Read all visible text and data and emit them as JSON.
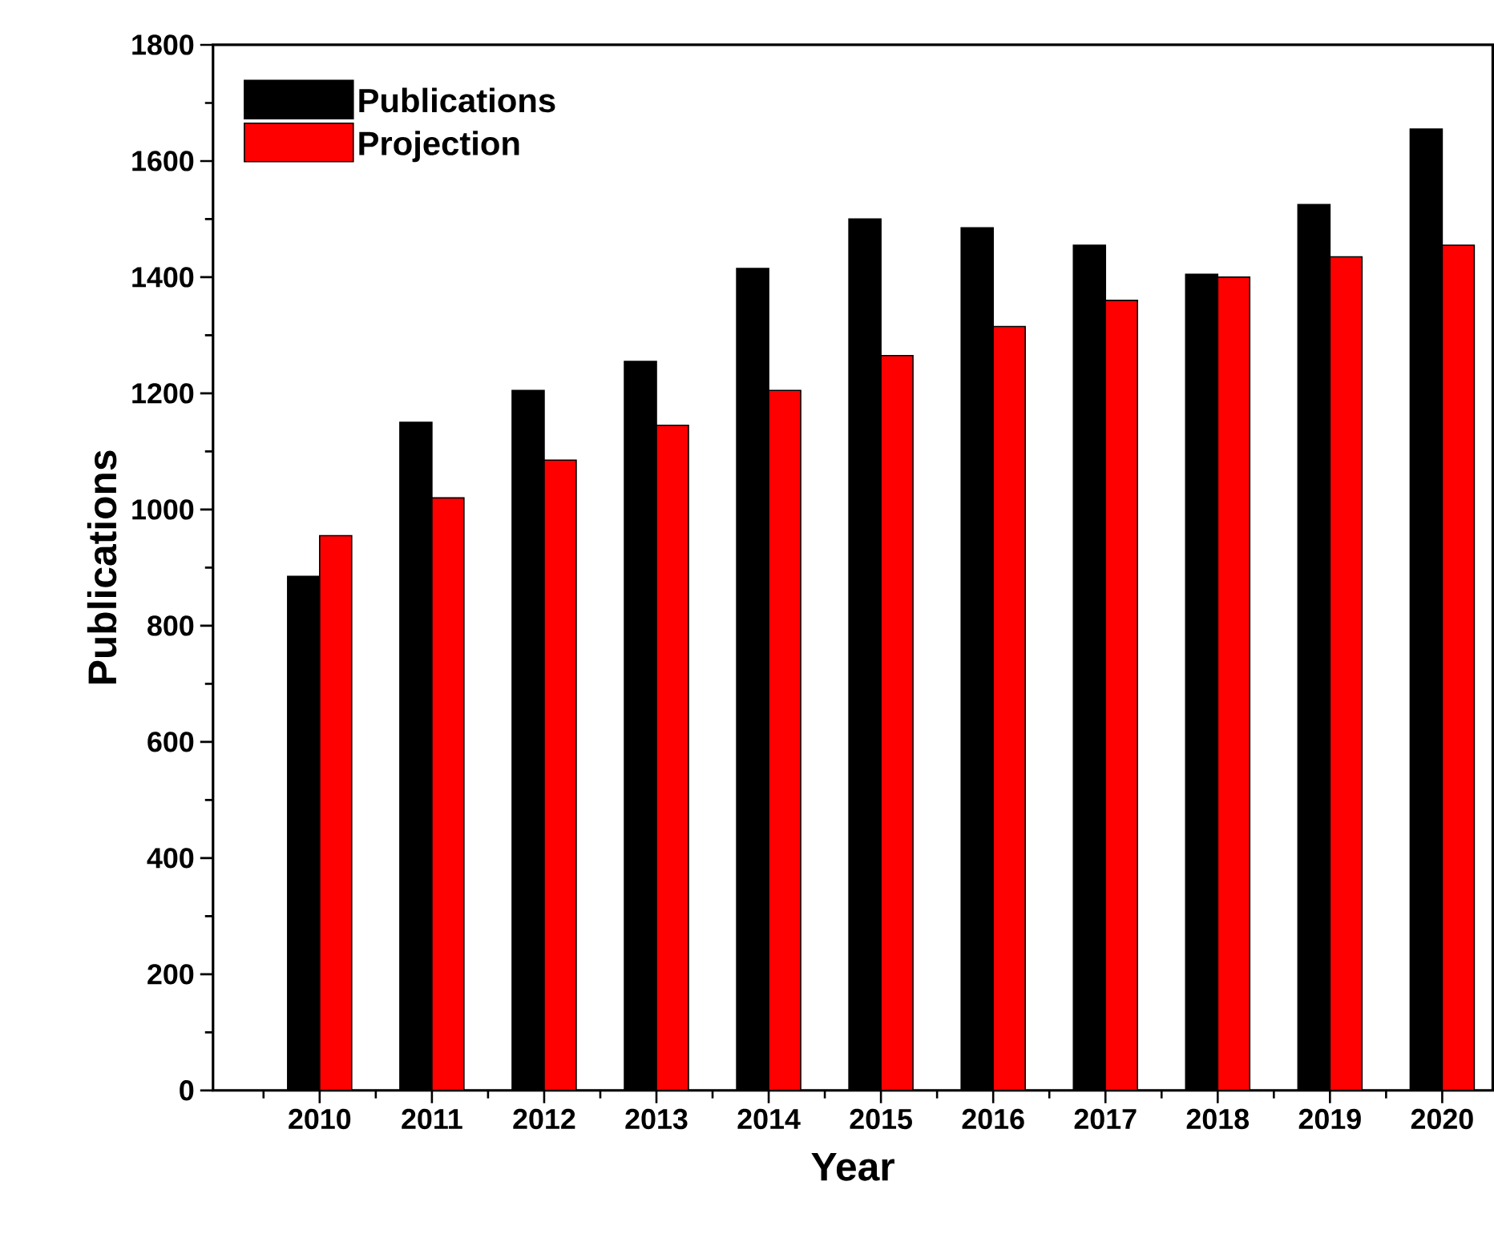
{
  "chart_data": {
    "type": "bar",
    "xlabel": "Year",
    "ylabel": "Publications",
    "categories": [
      "2010",
      "2011",
      "2012",
      "2013",
      "2014",
      "2015",
      "2016",
      "2017",
      "2018",
      "2019",
      "2020"
    ],
    "series": [
      {
        "name": "Publications",
        "color": "#000000",
        "values": [
          885,
          1150,
          1205,
          1255,
          1415,
          1500,
          1485,
          1455,
          1405,
          1525,
          1655
        ]
      },
      {
        "name": "Projection",
        "color": "#ff0000",
        "values": [
          955,
          1020,
          1085,
          1145,
          1205,
          1265,
          1315,
          1360,
          1400,
          1435,
          1455
        ]
      }
    ],
    "ylim": [
      0,
      1800
    ],
    "yticks": [
      0,
      200,
      400,
      600,
      800,
      1000,
      1200,
      1400,
      1600,
      1800
    ],
    "legend": "top left",
    "grid": false
  }
}
